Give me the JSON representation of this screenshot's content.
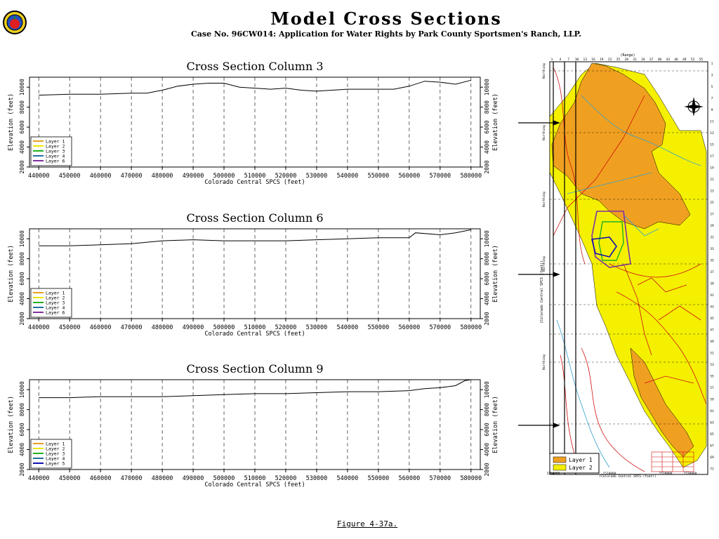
{
  "header": {
    "title": "Model Cross Sections",
    "subtitle": "Case No. 96CW014: Application for Water Rights by Park County Sportsmen's Ranch, LLP."
  },
  "caption": "Figure 4-37a.",
  "colors": {
    "layer1": "#e8a020",
    "layer2": "#e8e800",
    "layer3": "#20b020",
    "layer4": "#1f6fa0",
    "layer5": "#1010b0",
    "layer6": "#8030a0",
    "map_yellow": "#f4f000",
    "map_orange": "#f0a020",
    "river_red": "#d01010",
    "stream_cyan": "#30a0d0"
  },
  "chart_data": [
    {
      "type": "line",
      "title": "Cross Section Column 3",
      "xlabel": "Colorado Central SPCS (feet)",
      "ylabel": "Elevation (feet)",
      "ylabel_right": "Elevation (feet)",
      "x_ticks": [
        "440000",
        "450000",
        "460000",
        "470000",
        "480000",
        "490000",
        "500000",
        "510000",
        "520000",
        "530000",
        "540000",
        "550000",
        "560000",
        "570000",
        "580000"
      ],
      "y_ticks": [
        "2000",
        "4000",
        "6000",
        "8000",
        "10000"
      ],
      "xlim": [
        437000,
        583000
      ],
      "ylim": [
        2000,
        11000
      ],
      "grid": "vertical dashed",
      "legend_position": "bottom-left",
      "legend": [
        "Layer 1",
        "Layer 2",
        "Layer 3",
        "Layer 4",
        "Layer 6"
      ],
      "series": [
        {
          "x": [
            440000,
            450000,
            460000,
            470000,
            475000,
            480000,
            485000,
            490000,
            495000,
            500000,
            505000,
            510000,
            515000,
            520000,
            525000,
            530000,
            540000,
            550000,
            555000,
            560000,
            565000,
            570000,
            575000,
            580000
          ],
          "values": [
            9200,
            9300,
            9300,
            9400,
            9400,
            9700,
            10100,
            10300,
            10400,
            10400,
            10000,
            9900,
            9800,
            9900,
            9700,
            9600,
            9800,
            9800,
            9800,
            10100,
            10600,
            10500,
            10300,
            10700
          ]
        }
      ]
    },
    {
      "type": "line",
      "title": "Cross Section Column 6",
      "xlabel": "Colorado Central SPCS (feet)",
      "ylabel": "Elevation (feet)",
      "ylabel_right": "Elevation (feet)",
      "x_ticks": [
        "440000",
        "450000",
        "460000",
        "470000",
        "480000",
        "490000",
        "500000",
        "510000",
        "520000",
        "530000",
        "540000",
        "550000",
        "560000",
        "570000",
        "580000"
      ],
      "y_ticks": [
        "2000",
        "4000",
        "6000",
        "8000",
        "10000"
      ],
      "xlim": [
        437000,
        583000
      ],
      "ylim": [
        2000,
        11000
      ],
      "grid": "vertical dashed",
      "legend_position": "bottom-left",
      "legend": [
        "Layer 1",
        "Layer 2",
        "Layer 3",
        "Layer 4",
        "Layer 6"
      ],
      "series": [
        {
          "x": [
            440000,
            450000,
            460000,
            470000,
            480000,
            490000,
            500000,
            510000,
            520000,
            530000,
            540000,
            550000,
            560000,
            562000,
            570000,
            575000,
            580000
          ],
          "values": [
            9300,
            9300,
            9400,
            9500,
            9800,
            9900,
            9800,
            9800,
            9800,
            9900,
            10000,
            10100,
            10100,
            10600,
            10400,
            10600,
            10900
          ]
        }
      ]
    },
    {
      "type": "line",
      "title": "Cross Section Column 9",
      "xlabel": "Colorado Central SPCS (feet)",
      "ylabel": "Elevation (feet)",
      "ylabel_right": "Elevation (feet)",
      "x_ticks": [
        "440000",
        "450000",
        "460000",
        "470000",
        "480000",
        "490000",
        "500000",
        "510000",
        "520000",
        "530000",
        "540000",
        "550000",
        "560000",
        "570000",
        "580000"
      ],
      "y_ticks": [
        "2000",
        "4000",
        "6000",
        "8000",
        "10000"
      ],
      "xlim": [
        437000,
        583000
      ],
      "ylim": [
        2000,
        11000
      ],
      "grid": "vertical dashed",
      "legend_position": "bottom-left",
      "legend": [
        "Layer 1",
        "Layer 2",
        "Layer 3",
        "Layer 4",
        "Layer 5"
      ],
      "series": [
        {
          "x": [
            440000,
            450000,
            460000,
            470000,
            480000,
            490000,
            500000,
            510000,
            520000,
            530000,
            540000,
            550000,
            560000,
            565000,
            570000,
            575000,
            578000,
            580000
          ],
          "values": [
            9200,
            9200,
            9300,
            9300,
            9300,
            9400,
            9500,
            9600,
            9600,
            9700,
            9800,
            9800,
            9900,
            10100,
            10200,
            10400,
            10900,
            11000
          ]
        }
      ]
    }
  ],
  "map": {
    "top_label": "(Range)",
    "column_numbers": [
      "1",
      "4",
      "7",
      "10",
      "13",
      "16",
      "19",
      "22",
      "25",
      "28",
      "31",
      "34",
      "37",
      "40",
      "43",
      "46",
      "49",
      "52",
      "55"
    ],
    "row_numbers": [
      "1",
      "3",
      "5",
      "7",
      "9",
      "11",
      "13",
      "15",
      "17",
      "19",
      "21",
      "23",
      "25",
      "27",
      "29",
      "31",
      "33",
      "35",
      "37",
      "39",
      "41",
      "43",
      "45",
      "47",
      "49",
      "51",
      "53",
      "55",
      "57",
      "59",
      "61",
      "63",
      "65",
      "67",
      "69",
      "71"
    ],
    "left_axis_ticks": [
      "Northing",
      "Northing",
      "Northing",
      "Northing",
      "Northing"
    ],
    "left_axis_label": "(Colorado Central SPCS (feet))",
    "bottom_axis_ticks": [
      "1500000",
      "1510000",
      "1520000",
      "1530000"
    ],
    "bottom_axis_label": "(Colorado Central SPCS (feet))",
    "legend": [
      "Layer 1",
      "Layer 2"
    ]
  }
}
